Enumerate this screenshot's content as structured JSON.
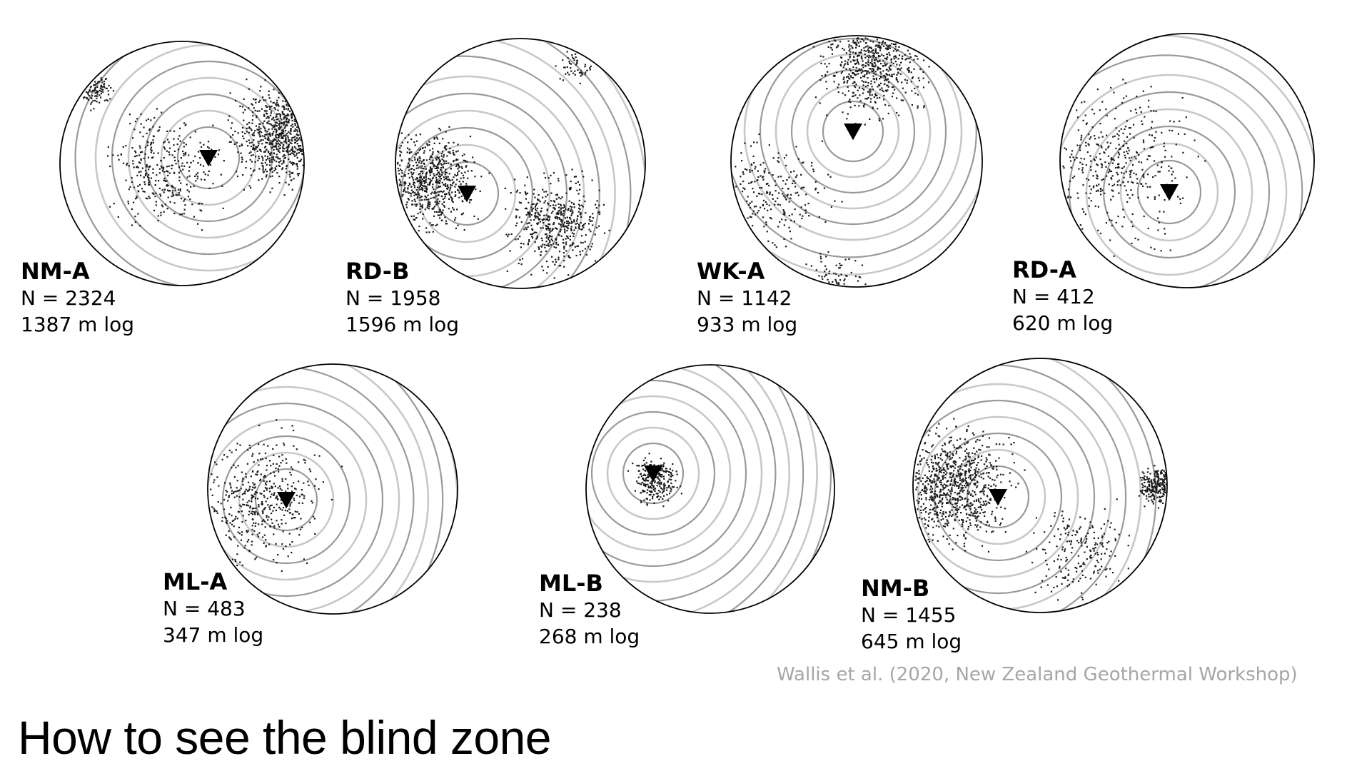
{
  "slide": {
    "title": "How to see the blind zone",
    "citation": "Wallis et al. (2020, New Zealand Geothermal Workshop)"
  },
  "colors": {
    "points": "#1a1a1a",
    "ring_dark": "#9a9a9a",
    "ring_light": "#c8c8c8",
    "outline": "#000000",
    "citation": "#a6a6a6"
  },
  "plots": [
    {
      "name": "NM-A",
      "n_label": "N = 2324",
      "log_label": "1387 m log"
    },
    {
      "name": "RD-B",
      "n_label": "N = 1958",
      "log_label": "1596 m log"
    },
    {
      "name": "WK-A",
      "n_label": "N = 1142",
      "log_label": "933 m log"
    },
    {
      "name": "RD-A",
      "n_label": "N = 412",
      "log_label": "620 m log"
    },
    {
      "name": "ML-A",
      "n_label": "N = 483",
      "log_label": "347 m log"
    },
    {
      "name": "ML-B",
      "n_label": "N = 238",
      "log_label": "268 m log"
    },
    {
      "name": "NM-B",
      "n_label": "N = 1455",
      "log_label": "645 m log"
    }
  ]
}
